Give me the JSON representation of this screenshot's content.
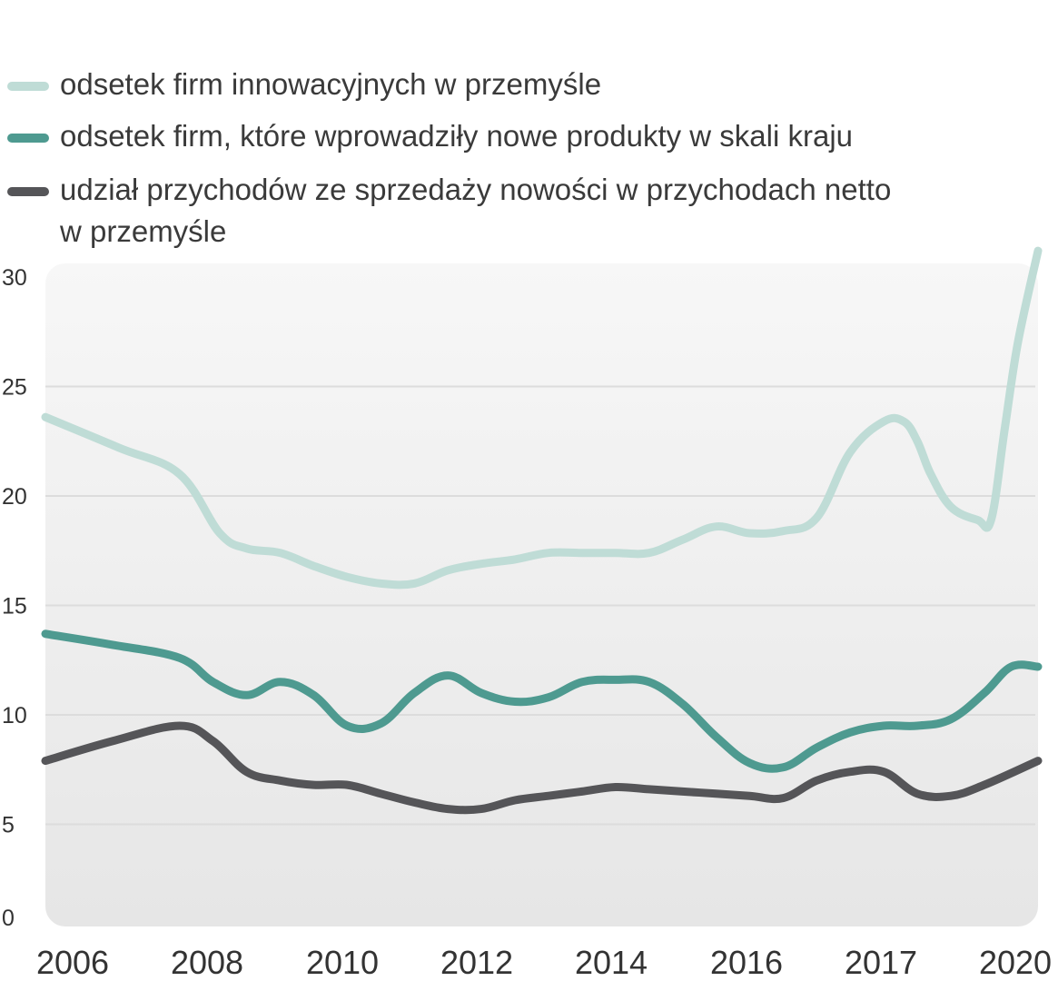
{
  "chart_data": {
    "type": "line",
    "title": "",
    "xlabel": "",
    "ylabel": "",
    "ylim": [
      0,
      30
    ],
    "yticks": [
      0,
      5,
      10,
      15,
      20,
      25,
      30
    ],
    "x_tick_labels": [
      "2006",
      "2008",
      "2010",
      "2012",
      "2014",
      "2016",
      "2017",
      "2020"
    ],
    "x_index_range": [
      0,
      14.8
    ],
    "series": [
      {
        "name": "odsetek firm innowacyjnych w przemyśle",
        "color": "#bfdcd6",
        "x": [
          0,
          1.1,
          2,
          2.6,
          3,
          3.5,
          4,
          4.5,
          5,
          5.5,
          6,
          6.5,
          7,
          7.5,
          8,
          8.5,
          9,
          9.5,
          10,
          10.5,
          11,
          11.5,
          12,
          12.5,
          12.8,
          13,
          13.2,
          13.5,
          13.9,
          14.1,
          14.3,
          14.5,
          14.8
        ],
        "values": [
          23.6,
          22.2,
          21.0,
          18.3,
          17.6,
          17.4,
          16.8,
          16.3,
          16.0,
          16.0,
          16.6,
          16.9,
          17.1,
          17.4,
          17.4,
          17.4,
          17.4,
          18.0,
          18.6,
          18.3,
          18.4,
          19.0,
          22.0,
          23.4,
          23.4,
          22.5,
          21.0,
          19.5,
          18.9,
          18.9,
          23.0,
          27.0,
          31.2
        ]
      },
      {
        "name": "odsetek firm, które wprowadziły nowe produkty w skali kraju",
        "color": "#4e9a90",
        "x": [
          0,
          1,
          2,
          2.5,
          3,
          3.5,
          4,
          4.5,
          5,
          5.5,
          6,
          6.5,
          7,
          7.5,
          8,
          8.5,
          9,
          9.5,
          10,
          10.5,
          11,
          11.5,
          12,
          12.5,
          13,
          13.5,
          14,
          14.4,
          14.8
        ],
        "values": [
          13.7,
          13.2,
          12.6,
          11.5,
          10.9,
          11.5,
          10.9,
          9.5,
          9.6,
          11.0,
          11.8,
          11.0,
          10.6,
          10.8,
          11.5,
          11.6,
          11.5,
          10.5,
          9.0,
          7.8,
          7.6,
          8.5,
          9.2,
          9.5,
          9.5,
          9.8,
          11.0,
          12.2,
          12.2
        ]
      },
      {
        "name": "udział przychodów ze sprzedaży nowości w przychodach netto w przemyśle",
        "color": "#555558",
        "x": [
          0,
          1,
          2,
          2.5,
          3,
          3.5,
          4,
          4.5,
          5,
          5.5,
          6,
          6.5,
          7,
          7.5,
          8,
          8.5,
          9,
          9.5,
          10,
          10.5,
          11,
          11.5,
          12,
          12.5,
          13,
          13.5,
          14,
          14.8
        ],
        "values": [
          7.9,
          8.8,
          9.5,
          8.8,
          7.4,
          7.0,
          6.8,
          6.8,
          6.4,
          6.0,
          5.7,
          5.7,
          6.1,
          6.3,
          6.5,
          6.7,
          6.6,
          6.5,
          6.4,
          6.3,
          6.2,
          7.0,
          7.4,
          7.4,
          6.4,
          6.3,
          6.8,
          7.9
        ]
      }
    ]
  }
}
